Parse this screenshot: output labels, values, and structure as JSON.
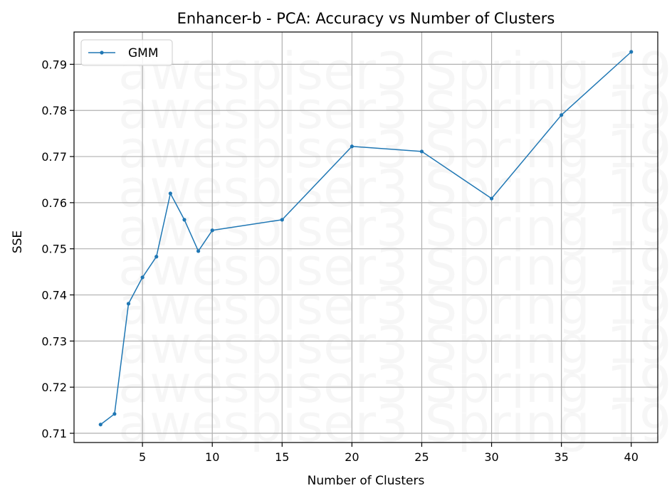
{
  "chart_data": {
    "type": "line",
    "title": "Enhancer-b - PCA: Accuracy vs Number of Clusters",
    "xlabel": "Number of Clusters",
    "ylabel": "SSE",
    "xlim": [
      0.1,
      41.9
    ],
    "ylim": [
      0.708,
      0.797
    ],
    "xticks": [
      5,
      10,
      15,
      20,
      25,
      30,
      35,
      40
    ],
    "yticks": [
      0.71,
      0.72,
      0.73,
      0.74,
      0.75,
      0.76,
      0.77,
      0.78,
      0.79
    ],
    "grid": true,
    "legend_position": "upper-left",
    "watermark": "awespiser3 Spring 19",
    "series": [
      {
        "name": "GMM",
        "color": "#1f77b4",
        "marker": "circle",
        "x": [
          2,
          3,
          4,
          5,
          6,
          7,
          8,
          9,
          10,
          15,
          20,
          25,
          30,
          35,
          40
        ],
        "y": [
          0.7119,
          0.7142,
          0.7381,
          0.7438,
          0.7483,
          0.762,
          0.7563,
          0.7495,
          0.754,
          0.7563,
          0.7722,
          0.7711,
          0.7609,
          0.779,
          0.7927
        ]
      }
    ]
  }
}
